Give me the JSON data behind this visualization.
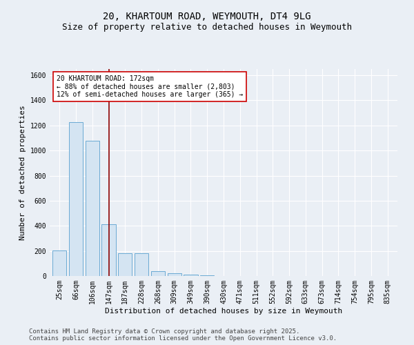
{
  "title_line1": "20, KHARTOUM ROAD, WEYMOUTH, DT4 9LG",
  "title_line2": "Size of property relative to detached houses in Weymouth",
  "xlabel": "Distribution of detached houses by size in Weymouth",
  "ylabel": "Number of detached properties",
  "categories": [
    "25sqm",
    "66sqm",
    "106sqm",
    "147sqm",
    "187sqm",
    "228sqm",
    "268sqm",
    "309sqm",
    "349sqm",
    "390sqm",
    "430sqm",
    "471sqm",
    "511sqm",
    "552sqm",
    "592sqm",
    "633sqm",
    "673sqm",
    "714sqm",
    "754sqm",
    "795sqm",
    "835sqm"
  ],
  "values": [
    205,
    1225,
    1080,
    415,
    180,
    180,
    40,
    20,
    12,
    8,
    0,
    0,
    0,
    0,
    0,
    0,
    0,
    0,
    0,
    0,
    0
  ],
  "bar_color": "#d4e4f2",
  "bar_edge_color": "#6aaad4",
  "vline_x": 3,
  "vline_color": "#8b0000",
  "annotation_text": "20 KHARTOUM ROAD: 172sqm\n← 88% of detached houses are smaller (2,803)\n12% of semi-detached houses are larger (365) →",
  "annotation_box_color": "#cc0000",
  "annotation_bg": "white",
  "ylim": [
    0,
    1650
  ],
  "yticks": [
    0,
    200,
    400,
    600,
    800,
    1000,
    1200,
    1400,
    1600
  ],
  "footnote_line1": "Contains HM Land Registry data © Crown copyright and database right 2025.",
  "footnote_line2": "Contains public sector information licensed under the Open Government Licence v3.0.",
  "background_color": "#eaeff5",
  "plot_bg_color": "#eaeff5",
  "grid_color": "white",
  "title_fontsize": 10,
  "subtitle_fontsize": 9,
  "footnote_fontsize": 6.5,
  "label_fontsize": 8,
  "tick_fontsize": 7,
  "annot_fontsize": 7
}
